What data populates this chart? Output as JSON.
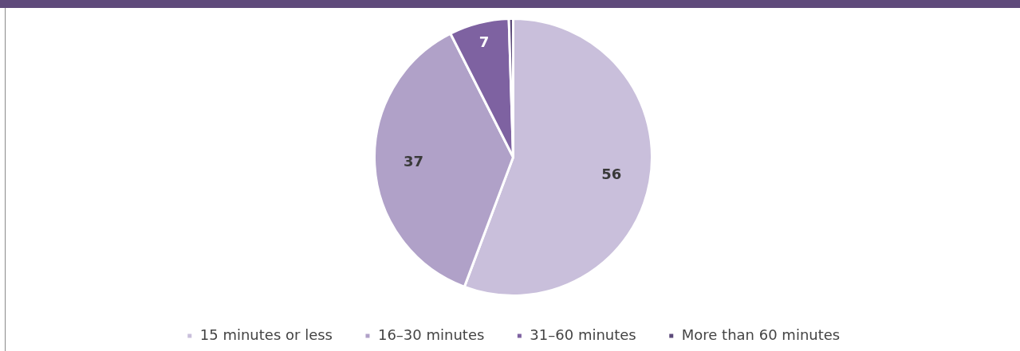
{
  "chart_data": {
    "type": "pie",
    "categories": [
      "15 minutes or less",
      "16–30 minutes",
      "31–60 minutes",
      "More than 60 minutes"
    ],
    "values": [
      56,
      37,
      7,
      0.5
    ],
    "value_labels": [
      "56",
      "37",
      "7",
      null
    ],
    "colors": [
      "#c9bfdb",
      "#b0a1c8",
      "#7e62a1",
      "#5c4a7a"
    ],
    "legend": "bottom"
  }
}
